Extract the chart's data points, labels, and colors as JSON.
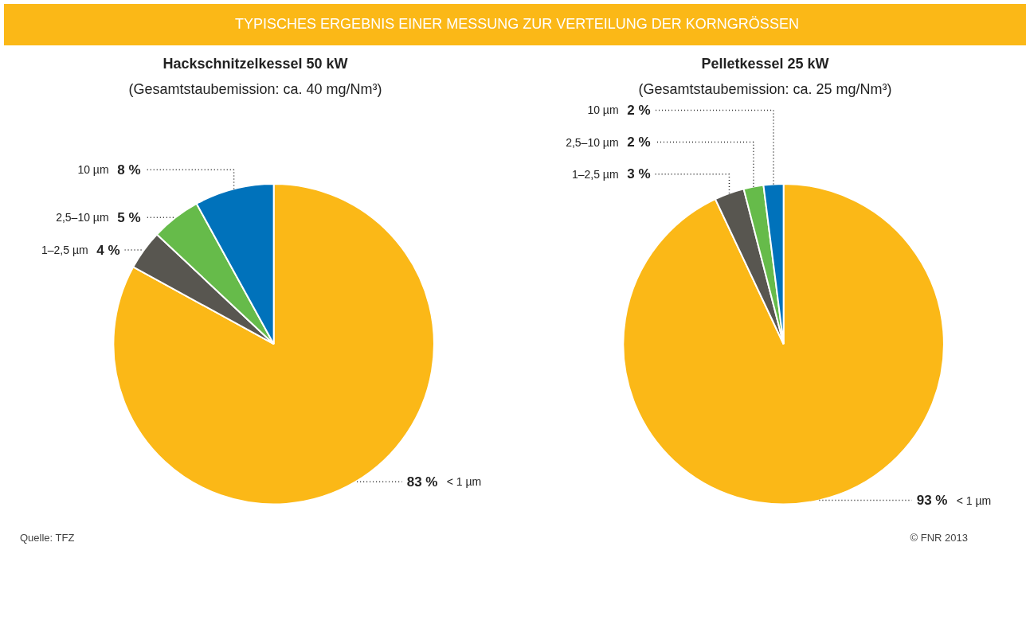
{
  "chart_data": [
    {
      "type": "pie",
      "title": "Hackschnitzelkessel 50 kW",
      "subtitle": "(Gesamtstaubemission: ca. 40 mg/Nm³)",
      "categories": [
        "< 1 µm",
        "1–2,5 µm",
        "2,5–10 µm",
        "10 µm"
      ],
      "values": [
        83,
        4,
        5,
        8
      ],
      "value_labels": [
        "83 %",
        "4 %",
        "5 %",
        "8 %"
      ],
      "colors": [
        "#fbb817",
        "#585650",
        "#66bb4a",
        "#0072bb"
      ],
      "annotations": [
        "TYPISCHES ERGEBNIS EINER MESSUNG ZUR VERTEILUNG DER KORNGRÖSSEN",
        "Quelle: TFZ"
      ]
    },
    {
      "type": "pie",
      "title": "Pelletkessel 25 kW",
      "subtitle": "(Gesamtstaubemission: ca. 25 mg/Nm³)",
      "categories": [
        "< 1 µm",
        "1–2,5 µm",
        "2,5–10 µm",
        "10 µm"
      ],
      "values": [
        93,
        3,
        2,
        2
      ],
      "value_labels": [
        "93 %",
        "3 %",
        "2 %",
        "2 %"
      ],
      "colors": [
        "#fbb817",
        "#585650",
        "#66bb4a",
        "#0072bb"
      ],
      "annotations": [
        "© FNR 2013"
      ]
    }
  ]
}
